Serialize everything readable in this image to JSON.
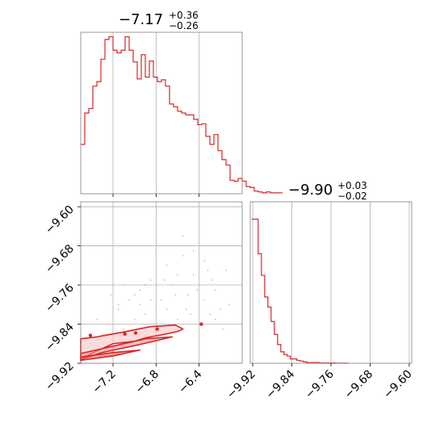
{
  "chart_data": [
    {
      "type": "histogram",
      "panel": "top-left",
      "title": {
        "main": "−7.17",
        "sup": "+0.36",
        "sub": "−0.26"
      },
      "xlim": [
        -7.5,
        -6.0
      ],
      "xticks": [
        -7.2,
        -6.8,
        -6.4
      ],
      "grid": true,
      "bin_edges_start": -7.5,
      "bin_width": 0.0375,
      "counts": [
        0.55,
        0.9,
        0.95,
        1.2,
        1.25,
        1.5,
        1.72,
        1.75,
        1.6,
        1.57,
        1.6,
        1.75,
        1.6,
        1.47,
        1.28,
        1.55,
        1.3,
        1.48,
        1.3,
        1.25,
        1.27,
        1.2,
        1.0,
        0.97,
        0.92,
        0.9,
        0.88,
        0.88,
        0.83,
        0.77,
        0.78,
        0.64,
        0.55,
        0.66,
        0.48,
        0.38,
        0.32,
        0.15,
        0.14,
        0.17,
        0.14,
        0.08,
        0.07,
        0.03,
        0.02,
        0.01,
        0.02,
        0.01,
        0.01,
        0.01
      ]
    },
    {
      "type": "histogram",
      "panel": "bottom-right",
      "title": {
        "main": "−9.90",
        "sup": "+0.03",
        "sub": "−0.02"
      },
      "xlim": [
        -9.925,
        -9.595
      ],
      "xticks": [
        -9.92,
        -9.84,
        -9.76,
        -9.68,
        -9.6
      ],
      "xticklabels": [
        "−9.92",
        "−9.84",
        "−9.76",
        "−9.68",
        "−9.60"
      ],
      "grid": true,
      "bin_edges_start": -9.922,
      "bin_width": 0.0066,
      "counts": [
        1.0,
        1.0,
        0.76,
        0.61,
        0.46,
        0.39,
        0.29,
        0.2,
        0.13,
        0.08,
        0.06,
        0.05,
        0.03,
        0.03,
        0.02,
        0.015,
        0.01,
        0.005,
        0.005,
        0.005,
        0.005,
        0.002,
        0.002,
        0.002,
        0.002,
        0.002,
        0.001,
        0.001,
        0.001,
        0.001
      ]
    },
    {
      "type": "2d-density-contour",
      "panel": "bottom-left",
      "xlim": [
        -7.5,
        -6.0
      ],
      "ylim": [
        -9.92,
        -9.59
      ],
      "xticks": [
        -7.2,
        -6.8,
        -6.4
      ],
      "yticks": [
        -9.6,
        -9.68,
        -9.76,
        -9.84,
        -9.92
      ],
      "yticklabels": [
        "−9.60",
        "−9.68",
        "−9.76",
        "−9.84",
        "−9.92"
      ],
      "grid": true,
      "color": "#d62728",
      "contours": [
        [
          [
            -7.5,
            -9.915
          ],
          [
            -7.4,
            -9.9
          ],
          [
            -7.3,
            -9.89
          ],
          [
            -7.2,
            -9.88
          ],
          [
            -7.0,
            -9.875
          ],
          [
            -6.9,
            -9.868
          ],
          [
            -6.75,
            -9.862
          ],
          [
            -6.6,
            -9.855
          ],
          [
            -6.55,
            -9.85
          ],
          [
            -6.62,
            -9.842
          ],
          [
            -6.85,
            -9.845
          ],
          [
            -7.1,
            -9.856
          ],
          [
            -7.35,
            -9.866
          ],
          [
            -7.5,
            -9.87
          ]
        ],
        [
          [
            -7.5,
            -9.912
          ],
          [
            -7.3,
            -9.898
          ],
          [
            -7.0,
            -9.884
          ],
          [
            -6.8,
            -9.874
          ],
          [
            -6.65,
            -9.866
          ],
          [
            -6.9,
            -9.87
          ],
          [
            -7.2,
            -9.885
          ],
          [
            -7.4,
            -9.895
          ],
          [
            -7.5,
            -9.9
          ]
        ],
        [
          [
            -7.5,
            -9.914
          ],
          [
            -7.2,
            -9.905
          ],
          [
            -6.95,
            -9.893
          ],
          [
            -7.2,
            -9.898
          ],
          [
            -7.5,
            -9.907
          ]
        ]
      ],
      "isolated_points": [
        [
          -7.41,
          -9.863
        ],
        [
          -7.09,
          -9.86
        ],
        [
          -6.99,
          -9.858
        ],
        [
          -6.79,
          -9.85
        ],
        [
          -6.38,
          -9.84
        ]
      ],
      "scatter_points": [
        [
          -7.4,
          -9.88
        ],
        [
          -7.3,
          -9.86
        ],
        [
          -7.25,
          -9.84
        ],
        [
          -7.2,
          -9.82
        ],
        [
          -7.15,
          -9.8
        ],
        [
          -7.1,
          -9.85
        ],
        [
          -7.05,
          -9.79
        ],
        [
          -7.0,
          -9.83
        ],
        [
          -6.95,
          -9.77
        ],
        [
          -6.9,
          -9.82
        ],
        [
          -6.85,
          -9.75
        ],
        [
          -6.8,
          -9.8
        ],
        [
          -6.75,
          -9.79
        ],
        [
          -6.7,
          -9.72
        ],
        [
          -6.65,
          -9.76
        ],
        [
          -6.6,
          -9.83
        ],
        [
          -6.55,
          -9.7
        ],
        [
          -6.5,
          -9.78
        ],
        [
          -6.45,
          -9.74
        ],
        [
          -6.4,
          -9.8
        ],
        [
          -6.35,
          -9.71
        ],
        [
          -6.3,
          -9.82
        ],
        [
          -6.25,
          -9.77
        ],
        [
          -6.2,
          -9.81
        ],
        [
          -6.15,
          -9.73
        ],
        [
          -7.35,
          -9.83
        ],
        [
          -7.15,
          -9.81
        ],
        [
          -7.0,
          -9.78
        ],
        [
          -6.9,
          -9.76
        ],
        [
          -6.7,
          -9.81
        ],
        [
          -6.6,
          -9.74
        ],
        [
          -6.45,
          -9.69
        ],
        [
          -6.35,
          -9.79
        ],
        [
          -6.25,
          -9.83
        ],
        [
          -6.8,
          -9.69
        ],
        [
          -6.55,
          -9.66
        ],
        [
          -6.72,
          -9.75
        ],
        [
          -6.95,
          -9.8
        ],
        [
          -7.1,
          -9.76
        ],
        [
          -6.62,
          -9.78
        ],
        [
          -6.48,
          -9.82
        ],
        [
          -6.28,
          -9.75
        ],
        [
          -6.18,
          -9.85
        ],
        [
          -7.22,
          -9.78
        ],
        [
          -6.85,
          -9.79
        ],
        [
          -6.68,
          -9.84
        ],
        [
          -6.42,
          -9.77
        ],
        [
          -6.32,
          -9.73
        ],
        [
          -6.52,
          -9.81
        ],
        [
          -6.12,
          -9.8
        ]
      ]
    }
  ]
}
